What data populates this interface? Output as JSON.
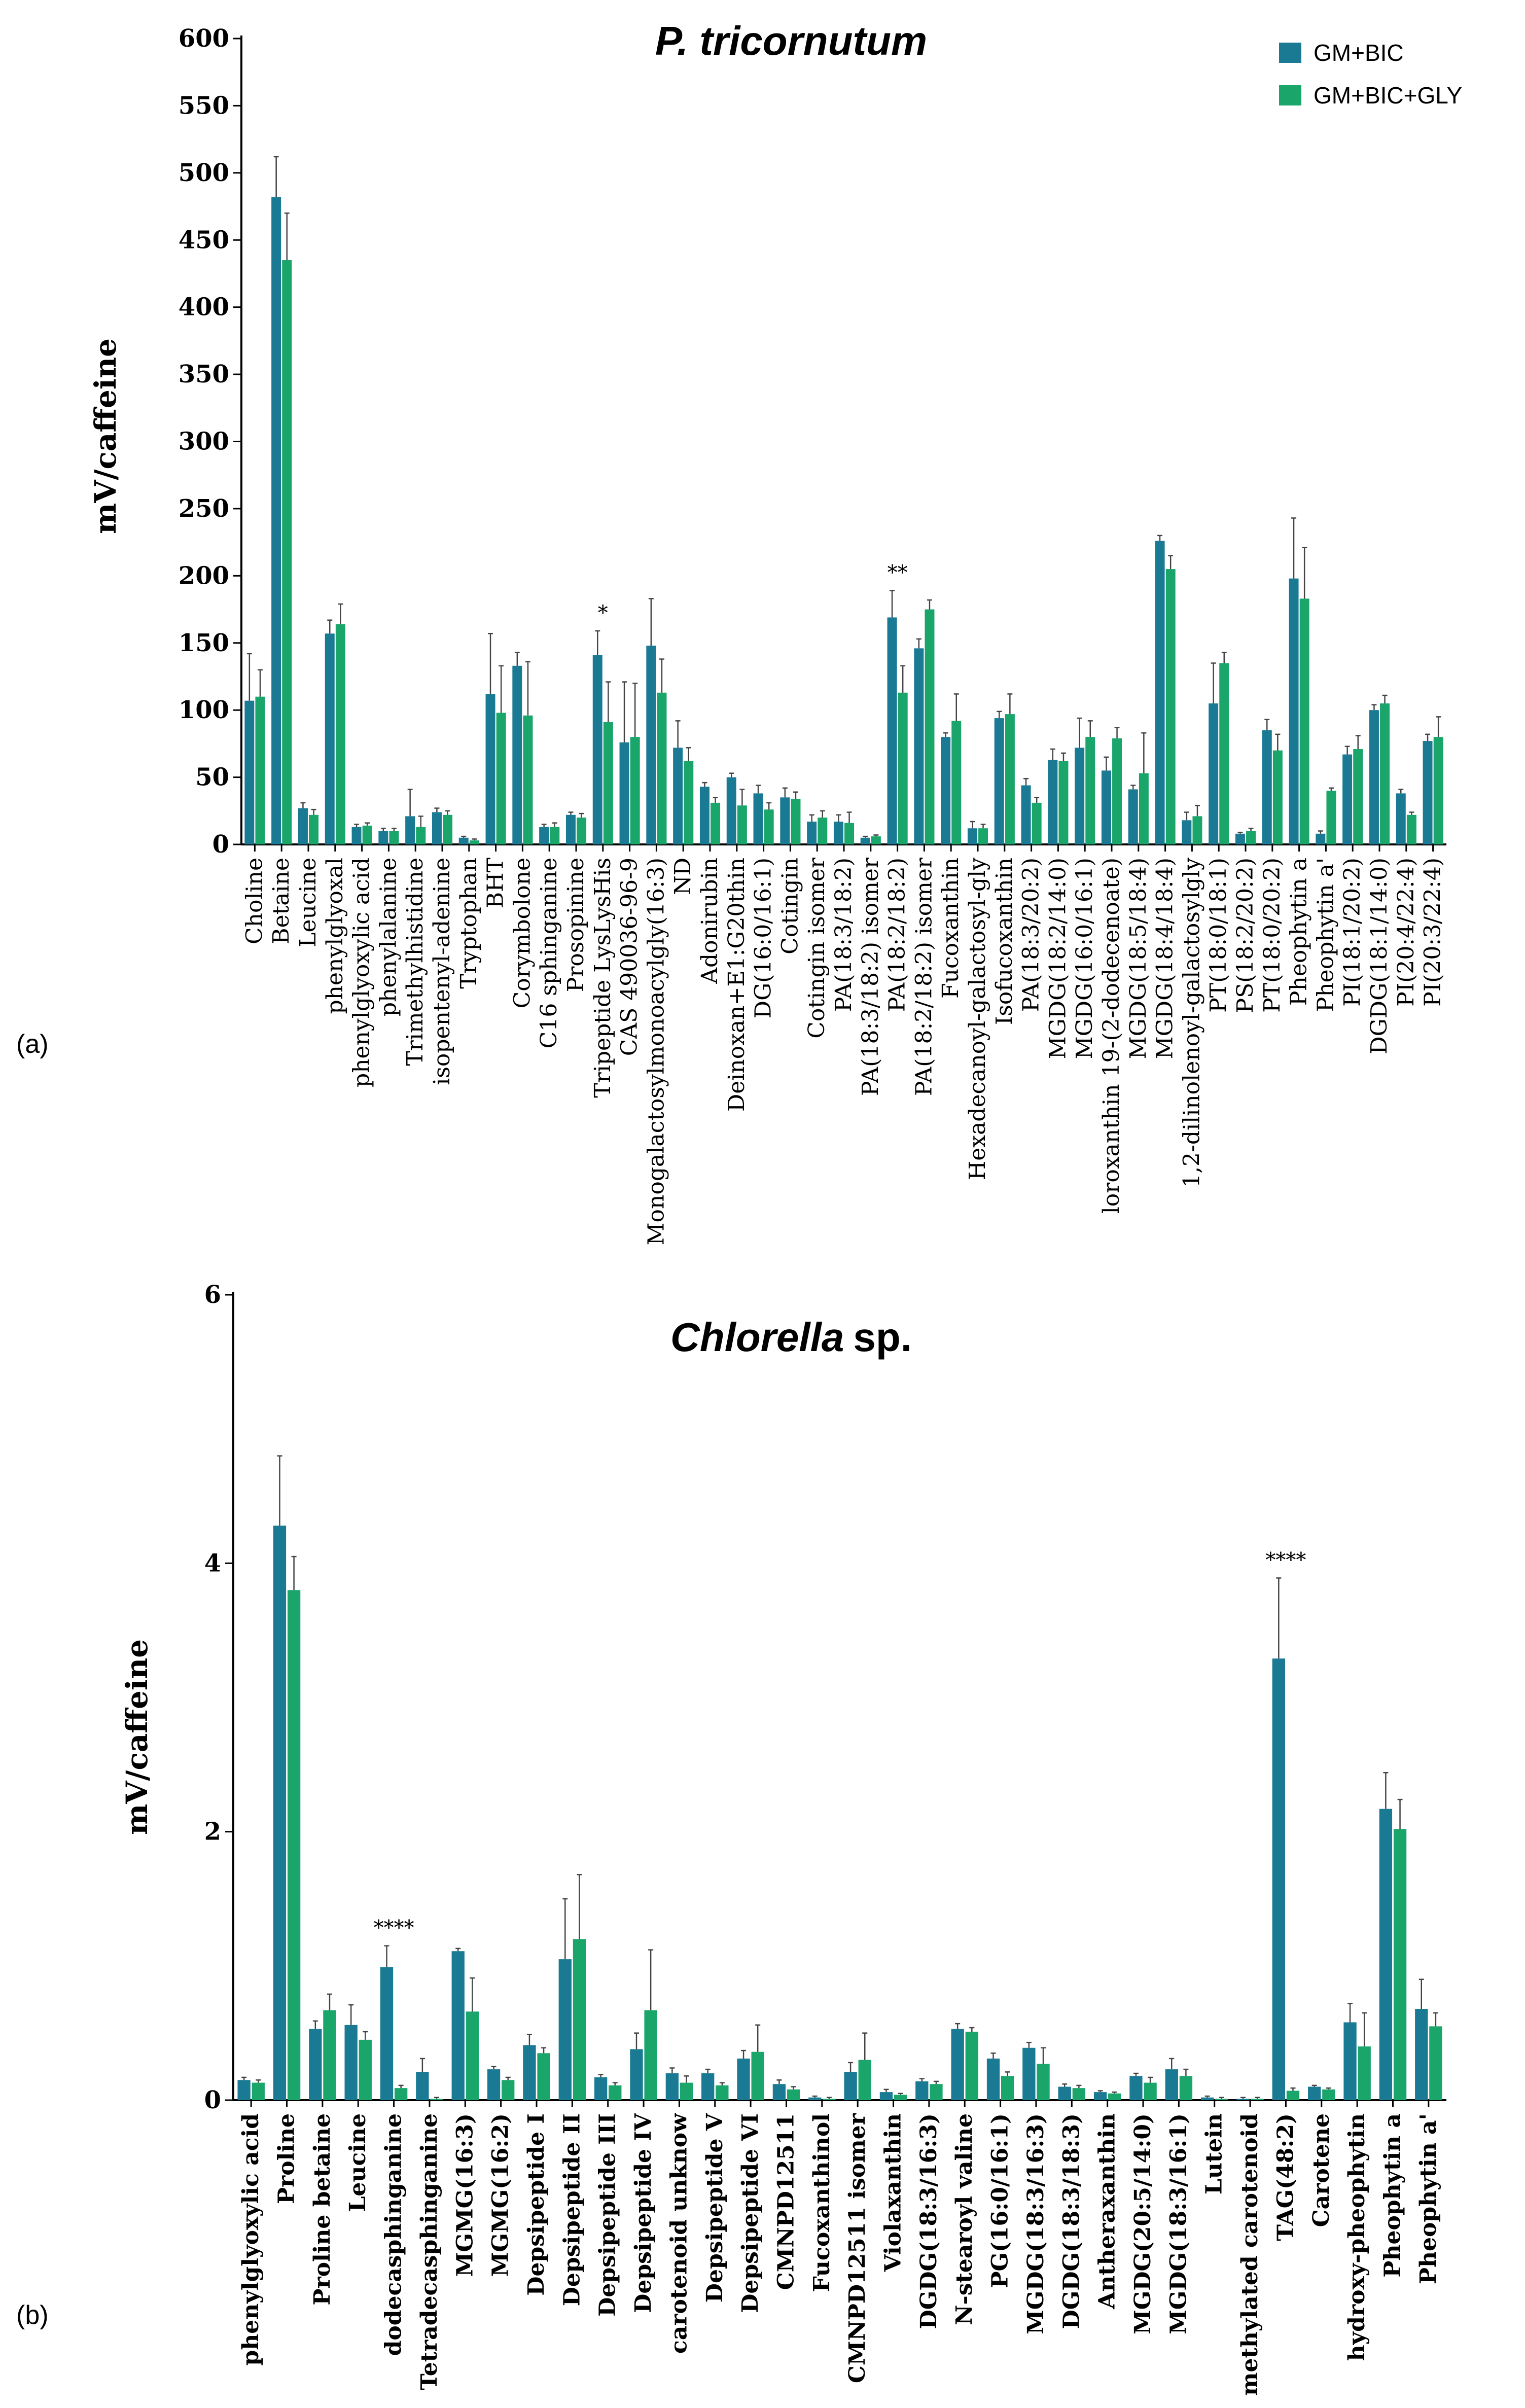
{
  "chart_data": [
    {
      "type": "bar",
      "panel": "(a)",
      "title": "P. tricornutum",
      "xlabel": "",
      "ylabel": "mV/caffeine",
      "ylim": [
        0,
        600
      ],
      "yticks": [
        0,
        50,
        100,
        150,
        200,
        250,
        300,
        350,
        400,
        450,
        500,
        550,
        600
      ],
      "legend": {
        "position": "top-right",
        "entries": [
          "GM+BIC",
          "GM+BIC+GLY"
        ]
      },
      "colors": {
        "series1": "#1a7a94",
        "series2": "#1aa56a"
      },
      "categories": [
        "Choline",
        "Betaine",
        "Leucine",
        "phenylglyoxal",
        "phenylglyoxylic acid",
        "phenylalanine",
        "Trimethylhistidine",
        "isopentenyl-adenine",
        "Tryptophan",
        "BHT",
        "Corymbolone",
        "C16 sphinganine",
        "Prosopinine",
        "Tripeptide LysLysHis",
        "CAS 490036-96-9",
        "Monogalactosylmonoacylgly(16:3)",
        "ND",
        "Adonirubin",
        "Deinoxan+E1:G20thin",
        "DG(16:0/16:1)",
        "Cotingin",
        "Cotingin isomer",
        "PA(18:3/18:2)",
        "PA(18:3/18:2) isomer",
        "PA(18:2/18:2)",
        "PA(18:2/18:2) isomer",
        "Fucoxanthin",
        "Hexadecanoyl-galactosyl-gly",
        "Isofucoxanthin",
        "PA(18:3/20:2)",
        "MGDG(18:2/14:0)",
        "MGDG(16:0/16:1)",
        "loroxanthin 19-(2-dodecenoate)",
        "MGDG(18:5/18:4)",
        "MGDG(18:4/18:4)",
        "1,2-dilinolenoyl-galactosylgly",
        "PT(18:0/18:1)",
        "PS(18:2/20:2)",
        "PT(18:0/20:2)",
        "Pheophytin a",
        "Pheophytin a'",
        "PI(18:1/20:2)",
        "DGDG(18:1/14:0)",
        "PI(20:4/22:4)",
        "PI(20:3/22:4)"
      ],
      "series": [
        {
          "name": "GM+BIC",
          "values": [
            107,
            482,
            27,
            157,
            13,
            10,
            21,
            24,
            5,
            112,
            133,
            13,
            22,
            141,
            76,
            148,
            72,
            43,
            50,
            38,
            35,
            17,
            17,
            5,
            169,
            146,
            80,
            12,
            94,
            44,
            63,
            72,
            55,
            41,
            226,
            18,
            105,
            8,
            85,
            198,
            8,
            67,
            100,
            38,
            77
          ]
        },
        {
          "name": "GM+BIC+GLY",
          "values": [
            110,
            435,
            22,
            164,
            14,
            10,
            13,
            22,
            3,
            98,
            96,
            13,
            20,
            91,
            80,
            113,
            62,
            31,
            29,
            26,
            34,
            20,
            16,
            6,
            113,
            175,
            92,
            12,
            97,
            31,
            62,
            80,
            79,
            53,
            205,
            21,
            135,
            10,
            70,
            183,
            40,
            71,
            105,
            22,
            80
          ]
        }
      ],
      "errors": [
        {
          "name": "GM+BIC",
          "values": [
            35,
            30,
            4,
            10,
            2,
            2,
            20,
            3,
            1,
            45,
            10,
            2,
            2,
            18,
            45,
            35,
            20,
            3,
            3,
            6,
            7,
            5,
            5,
            1,
            20,
            7,
            3,
            5,
            5,
            5,
            8,
            22,
            10,
            3,
            4,
            6,
            30,
            1,
            8,
            45,
            2,
            6,
            4,
            3,
            5
          ]
        },
        {
          "name": "GM+BIC+GLY",
          "values": [
            20,
            35,
            4,
            15,
            2,
            2,
            8,
            3,
            1,
            35,
            40,
            3,
            3,
            30,
            40,
            25,
            10,
            4,
            12,
            5,
            5,
            5,
            8,
            1,
            20,
            7,
            20,
            3,
            15,
            4,
            6,
            12,
            8,
            30,
            10,
            8,
            8,
            2,
            12,
            38,
            2,
            10,
            6,
            2,
            15
          ]
        }
      ],
      "annotations": [
        {
          "text": "*",
          "category": "Tripeptide LysLysHis"
        },
        {
          "text": "**",
          "category": "PA(18:2/18:2)"
        }
      ]
    },
    {
      "type": "bar",
      "panel": "(b)",
      "title": "Chlorella",
      "title_suffix": "sp.",
      "xlabel": "",
      "ylabel": "mV/caffeine",
      "ylim": [
        0,
        6
      ],
      "yticks": [
        0,
        2,
        4,
        6
      ],
      "colors": {
        "series1": "#1a7a94",
        "series2": "#1aa56a"
      },
      "categories": [
        "phenylglyoxylic acid",
        "Proline",
        "Proline betaine",
        "Leucine",
        "dodecasphinganine",
        "Tetradecasphinganine",
        "MGMG(16:3)",
        "MGMG(16:2)",
        "Depsipeptide I",
        "Depsipeptide II",
        "Depsipeptide III",
        "Depsipeptide IV",
        "carotenoid unknow",
        "Depsipeptide V",
        "Depsipeptide VI",
        "CMNPD12511",
        "Fucoxanthinol",
        "CMNPD12511 isomer",
        "Violaxanthin",
        "DGDG(18:3/16:3)",
        "N-stearoyl valine",
        "PG(16:0/16:1)",
        "MGDG(18:3/16:3)",
        "DGDG(18:3/18:3)",
        "Antheraxanthin",
        "MGDG(20:5/14:0)",
        "MGDG(18:3/16:1)",
        "Lutein",
        "methylated carotenoid",
        "TAG(48:2)",
        "Carotene",
        "hydroxy-pheophytin",
        "Pheophytin a",
        "Pheophytin a'"
      ],
      "series": [
        {
          "name": "GM+BIC",
          "values": [
            0.15,
            4.28,
            0.53,
            0.56,
            0.99,
            0.21,
            1.11,
            0.23,
            0.41,
            1.05,
            0.17,
            0.38,
            0.2,
            0.2,
            0.31,
            0.12,
            0.02,
            0.21,
            0.06,
            0.14,
            0.53,
            0.31,
            0.39,
            0.1,
            0.06,
            0.18,
            0.23,
            0.02,
            0.01,
            3.29,
            0.1,
            0.58,
            2.17,
            0.68
          ]
        },
        {
          "name": "GM+BIC+GLY",
          "values": [
            0.13,
            3.8,
            0.67,
            0.45,
            0.09,
            0.01,
            0.66,
            0.15,
            0.35,
            1.2,
            0.11,
            0.67,
            0.13,
            0.11,
            0.36,
            0.08,
            0.01,
            0.3,
            0.04,
            0.12,
            0.51,
            0.18,
            0.27,
            0.09,
            0.05,
            0.13,
            0.18,
            0.01,
            0.01,
            0.07,
            0.08,
            0.4,
            2.02,
            0.55
          ]
        }
      ],
      "errors": [
        {
          "name": "GM+BIC",
          "values": [
            0.02,
            0.52,
            0.06,
            0.15,
            0.16,
            0.1,
            0.02,
            0.02,
            0.08,
            0.45,
            0.02,
            0.12,
            0.04,
            0.03,
            0.06,
            0.03,
            0.01,
            0.07,
            0.02,
            0.02,
            0.04,
            0.04,
            0.04,
            0.02,
            0.01,
            0.02,
            0.08,
            0.01,
            0.01,
            0.6,
            0.01,
            0.14,
            0.27,
            0.22
          ]
        },
        {
          "name": "GM+BIC+GLY",
          "values": [
            0.02,
            0.25,
            0.12,
            0.06,
            0.02,
            0.01,
            0.25,
            0.02,
            0.04,
            0.48,
            0.02,
            0.45,
            0.05,
            0.02,
            0.2,
            0.02,
            0.01,
            0.2,
            0.01,
            0.02,
            0.03,
            0.03,
            0.12,
            0.02,
            0.01,
            0.04,
            0.05,
            0.01,
            0.01,
            0.02,
            0.01,
            0.25,
            0.22,
            0.1
          ]
        }
      ],
      "annotations": [
        {
          "text": "****",
          "category": "dodecasphinganine"
        },
        {
          "text": "****",
          "category": "TAG(48:2)"
        }
      ]
    }
  ]
}
